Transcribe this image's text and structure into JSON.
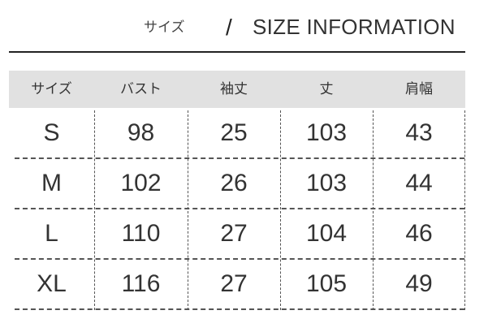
{
  "title": {
    "jp": "サイズ",
    "separator": "/",
    "en": "SIZE INFORMATION"
  },
  "table": {
    "headers": [
      "サイズ",
      "バスト",
      "袖丈",
      "丈",
      "肩幅"
    ],
    "rows": [
      [
        "S",
        "98",
        "25",
        "103",
        "43"
      ],
      [
        "M",
        "102",
        "26",
        "103",
        "44"
      ],
      [
        "L",
        "110",
        "27",
        "104",
        "46"
      ],
      [
        "XL",
        "116",
        "27",
        "105",
        "49"
      ]
    ]
  },
  "colors": {
    "header_bg": "#e1e1e1",
    "text": "#333333"
  }
}
